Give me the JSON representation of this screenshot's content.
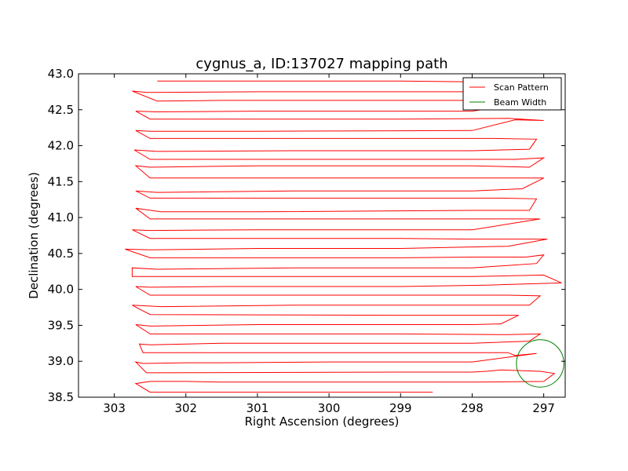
{
  "chart_data": {
    "type": "line",
    "title": "cygnus_a, ID:137027 mapping path",
    "xlabel": "Right Ascension (degrees)",
    "ylabel": "Declination (degrees)",
    "xlim": [
      303.5,
      296.7
    ],
    "ylim": [
      38.5,
      43.0
    ],
    "x_inverted": true,
    "xticks": [
      303,
      302,
      301,
      300,
      299,
      298,
      297
    ],
    "yticks": [
      "38.5",
      "39.0",
      "39.5",
      "40.0",
      "40.5",
      "41.0",
      "41.5",
      "42.0",
      "42.5",
      "43.0"
    ],
    "grid": false,
    "legend": {
      "placement": "top-right",
      "entries": [
        {
          "label": "Scan Pattern",
          "color": "#ff0000"
        },
        {
          "label": "Beam Width",
          "color": "#008000"
        }
      ]
    },
    "series": [
      {
        "name": "Scan Pattern",
        "color": "#ff0000",
        "points": [
          [
            298.55,
            38.57
          ],
          [
            302.5,
            38.57
          ],
          [
            302.7,
            38.69
          ],
          [
            302.5,
            38.72
          ],
          [
            302.0,
            38.72
          ],
          [
            301.5,
            38.71
          ],
          [
            301.0,
            38.71
          ],
          [
            299.5,
            38.71
          ],
          [
            298.0,
            38.71
          ],
          [
            297.0,
            38.72
          ],
          [
            296.85,
            38.83
          ],
          [
            297.05,
            38.86
          ],
          [
            297.6,
            38.88
          ],
          [
            297.8,
            38.86
          ],
          [
            298.0,
            38.85
          ],
          [
            299.0,
            38.85
          ],
          [
            302.55,
            38.84
          ],
          [
            302.7,
            38.99
          ],
          [
            302.6,
            38.97
          ],
          [
            302.0,
            38.98
          ],
          [
            301.5,
            38.98
          ],
          [
            300.0,
            38.99
          ],
          [
            298.0,
            38.99
          ],
          [
            297.1,
            39.11
          ],
          [
            297.4,
            39.08
          ],
          [
            297.5,
            39.12
          ],
          [
            299.0,
            39.12
          ],
          [
            302.6,
            39.12
          ],
          [
            302.65,
            39.24
          ],
          [
            302.5,
            39.23
          ],
          [
            301.5,
            39.25
          ],
          [
            300.0,
            39.25
          ],
          [
            298.0,
            39.25
          ],
          [
            297.2,
            39.28
          ],
          [
            297.05,
            39.38
          ],
          [
            297.5,
            39.37
          ],
          [
            299.0,
            39.38
          ],
          [
            302.5,
            39.38
          ],
          [
            302.7,
            39.51
          ],
          [
            302.5,
            39.49
          ],
          [
            301.0,
            39.51
          ],
          [
            298.0,
            39.51
          ],
          [
            297.6,
            39.52
          ],
          [
            297.35,
            39.64
          ],
          [
            299.0,
            39.64
          ],
          [
            302.5,
            39.65
          ],
          [
            302.75,
            39.78
          ],
          [
            302.35,
            39.76
          ],
          [
            300.5,
            39.78
          ],
          [
            298.0,
            39.78
          ],
          [
            297.2,
            39.78
          ],
          [
            297.05,
            39.91
          ],
          [
            297.5,
            39.92
          ],
          [
            299.0,
            39.92
          ],
          [
            302.5,
            39.92
          ],
          [
            302.7,
            40.04
          ],
          [
            302.5,
            40.03
          ],
          [
            301.5,
            40.04
          ],
          [
            299.0,
            40.04
          ],
          [
            297.8,
            40.06
          ],
          [
            296.75,
            40.09
          ],
          [
            297.0,
            40.2
          ],
          [
            297.45,
            40.19
          ],
          [
            298.0,
            40.18
          ],
          [
            299.0,
            40.18
          ],
          [
            302.75,
            40.18
          ],
          [
            302.75,
            40.3
          ],
          [
            302.4,
            40.28
          ],
          [
            300.5,
            40.3
          ],
          [
            298.0,
            40.3
          ],
          [
            297.1,
            40.36
          ],
          [
            297.0,
            40.48
          ],
          [
            297.25,
            40.45
          ],
          [
            298.0,
            40.45
          ],
          [
            299.0,
            40.44
          ],
          [
            302.5,
            40.44
          ],
          [
            302.85,
            40.56
          ],
          [
            302.5,
            40.55
          ],
          [
            301.0,
            40.57
          ],
          [
            299.0,
            40.57
          ],
          [
            297.5,
            40.6
          ],
          [
            296.95,
            40.7
          ],
          [
            297.3,
            40.7
          ],
          [
            298.0,
            40.7
          ],
          [
            299.0,
            40.71
          ],
          [
            302.5,
            40.71
          ],
          [
            302.75,
            40.83
          ],
          [
            302.5,
            40.82
          ],
          [
            301.0,
            40.83
          ],
          [
            298.0,
            40.83
          ],
          [
            297.05,
            40.98
          ],
          [
            297.4,
            40.98
          ],
          [
            299.0,
            40.98
          ],
          [
            302.5,
            40.98
          ],
          [
            302.7,
            41.13
          ],
          [
            302.35,
            41.08
          ],
          [
            301.0,
            41.08
          ],
          [
            298.0,
            41.1
          ],
          [
            297.2,
            41.1
          ],
          [
            297.1,
            41.26
          ],
          [
            297.6,
            41.27
          ],
          [
            299.0,
            41.27
          ],
          [
            302.5,
            41.27
          ],
          [
            302.7,
            41.37
          ],
          [
            302.4,
            41.35
          ],
          [
            300.5,
            41.37
          ],
          [
            298.0,
            41.37
          ],
          [
            297.3,
            41.4
          ],
          [
            297.0,
            41.55
          ],
          [
            297.5,
            41.55
          ],
          [
            299.0,
            41.55
          ],
          [
            302.5,
            41.55
          ],
          [
            302.7,
            41.72
          ],
          [
            302.5,
            41.7
          ],
          [
            301.0,
            41.72
          ],
          [
            298.0,
            41.72
          ],
          [
            297.2,
            41.7
          ],
          [
            297.0,
            41.83
          ],
          [
            297.4,
            41.81
          ],
          [
            299.0,
            41.81
          ],
          [
            302.5,
            41.81
          ],
          [
            302.72,
            41.94
          ],
          [
            302.4,
            41.92
          ],
          [
            300.5,
            41.93
          ],
          [
            298.0,
            41.93
          ],
          [
            297.2,
            41.95
          ],
          [
            297.1,
            42.09
          ],
          [
            297.7,
            42.1
          ],
          [
            299.0,
            42.1
          ],
          [
            302.5,
            42.1
          ],
          [
            302.7,
            42.21
          ],
          [
            302.5,
            42.2
          ],
          [
            301.0,
            42.2
          ],
          [
            298.0,
            42.21
          ],
          [
            297.4,
            42.36
          ],
          [
            297.0,
            42.35
          ],
          [
            297.5,
            42.38
          ],
          [
            299.0,
            42.37
          ],
          [
            302.5,
            42.37
          ],
          [
            302.7,
            42.48
          ],
          [
            302.4,
            42.47
          ],
          [
            301.0,
            42.48
          ],
          [
            298.0,
            42.48
          ],
          [
            297.1,
            42.62
          ],
          [
            297.5,
            42.63
          ],
          [
            299.0,
            42.63
          ],
          [
            301.5,
            42.63
          ],
          [
            302.4,
            42.62
          ],
          [
            302.75,
            42.76
          ],
          [
            302.55,
            42.74
          ],
          [
            301.0,
            42.75
          ],
          [
            298.0,
            42.75
          ],
          [
            297.05,
            42.76
          ],
          [
            297.3,
            42.88
          ],
          [
            299.0,
            42.9
          ],
          [
            302.4,
            42.9
          ]
        ]
      },
      {
        "name": "Beam Width",
        "color": "#008000",
        "shape": "circle",
        "center": [
          297.05,
          38.97
        ],
        "radius": 0.33
      }
    ]
  }
}
